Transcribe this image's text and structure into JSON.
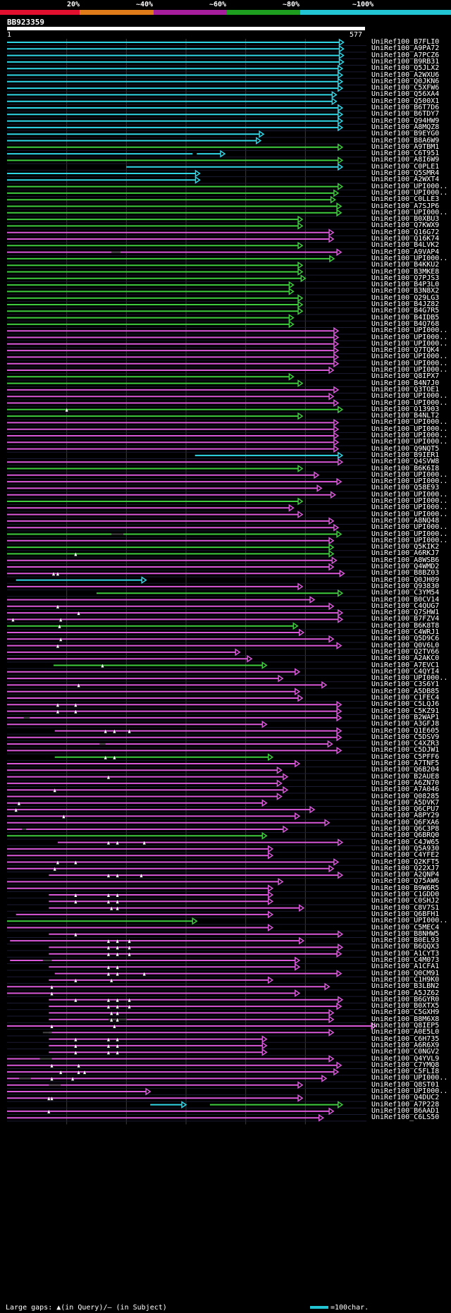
{
  "scale": {
    "labels": [
      "20%",
      "~40%",
      "~60%",
      "~80%",
      "~100%"
    ],
    "colors": [
      "#e0102e",
      "#e07b1a",
      "#a61e9c",
      "#1e9e1e",
      "#22c5d4"
    ]
  },
  "query": {
    "name": "BB923359",
    "start": "1",
    "end": "577"
  },
  "legend": {
    "left": "Large gaps: ▲(in Query)/— (in Subject)",
    "right": "=100char."
  },
  "hits": [
    {
      "name": "UniRef100_B7FLI0",
      "s": 0,
      "e": 564,
      "c": "c"
    },
    {
      "name": "UniRef100_A9PA72",
      "s": 0,
      "e": 564,
      "c": "c"
    },
    {
      "name": "UniRef100_A7PCZ6",
      "s": 0,
      "e": 564,
      "c": "c"
    },
    {
      "name": "UniRef100_B9RB31",
      "s": 0,
      "e": 564,
      "c": "c"
    },
    {
      "name": "UniRef100_Q5JLX2",
      "s": 0,
      "e": 562,
      "c": "c"
    },
    {
      "name": "UniRef100_A2WXU6",
      "s": 0,
      "e": 562,
      "c": "c"
    },
    {
      "name": "UniRef100_Q0JKN6",
      "s": 0,
      "e": 562,
      "c": "c"
    },
    {
      "name": "UniRef100_C5XFW6",
      "s": 0,
      "e": 562,
      "c": "c"
    },
    {
      "name": "UniRef100_Q56XA4",
      "s": 0,
      "e": 552,
      "c": "c"
    },
    {
      "name": "UniRef100_Q500X1",
      "s": 0,
      "e": 552,
      "c": "c"
    },
    {
      "name": "UniRef100_B6T7D6",
      "s": 0,
      "e": 562,
      "c": "c"
    },
    {
      "name": "UniRef100_B6TDY7",
      "s": 0,
      "e": 562,
      "c": "c"
    },
    {
      "name": "UniRef100_Q94HW9",
      "s": 0,
      "e": 562,
      "c": "c"
    },
    {
      "name": "UniRef100_A8MQZ8",
      "s": 0,
      "e": 562,
      "c": "c"
    },
    {
      "name": "UniRef100_B9EYG0",
      "s": 0,
      "e": 430,
      "c": "c"
    },
    {
      "name": "UniRef100_B8A6W9",
      "s": 0,
      "e": 425,
      "c": "c"
    },
    {
      "name": "UniRef100_A9TBM1",
      "s": 0,
      "e": 562,
      "c": "g"
    },
    {
      "name": "UniRef100_C6T951",
      "s": 0,
      "e": 365,
      "c": "c",
      "seg": [
        318,
        365
      ]
    },
    {
      "name": "UniRef100_A8I6W9",
      "s": 0,
      "e": 562,
      "c": "g"
    },
    {
      "name": "UniRef100_C0PLE1",
      "s": 200,
      "e": 562,
      "c": "c"
    },
    {
      "name": "UniRef100_Q5SMR4",
      "s": 0,
      "e": 323,
      "c": "c"
    },
    {
      "name": "UniRef100_A2WXT4",
      "s": 0,
      "e": 323,
      "c": "c"
    },
    {
      "name": "UniRef100_UPI000..",
      "s": 0,
      "e": 562,
      "c": "g"
    },
    {
      "name": "UniRef100_UPI000..",
      "s": 0,
      "e": 555,
      "c": "g"
    },
    {
      "name": "UniRef100_C0LLE3",
      "s": 0,
      "e": 550,
      "c": "g"
    },
    {
      "name": "UniRef100_A7SJP6",
      "s": 0,
      "e": 560,
      "c": "g"
    },
    {
      "name": "UniRef100_UPI000..",
      "s": 0,
      "e": 560,
      "c": "g"
    },
    {
      "name": "UniRef100_B0XBU3",
      "s": 0,
      "e": 495,
      "c": "g"
    },
    {
      "name": "UniRef100_Q7KWX9",
      "s": 0,
      "e": 495,
      "c": "g"
    },
    {
      "name": "UniRef100_Q16G72",
      "s": 0,
      "e": 547,
      "c": "m"
    },
    {
      "name": "UniRef100_Q16K74",
      "s": 0,
      "e": 547,
      "c": "m"
    },
    {
      "name": "UniRef100_B4LVK2",
      "s": 0,
      "e": 495,
      "c": "g"
    },
    {
      "name": "UniRef100_A9VAP4",
      "s": 0,
      "e": 560,
      "c": "m",
      "gap": [
        175,
        190
      ]
    },
    {
      "name": "UniRef100_UPI000..",
      "s": 0,
      "e": 548,
      "c": "g"
    },
    {
      "name": "UniRef100_B4KKU2",
      "s": 0,
      "e": 495,
      "c": "g"
    },
    {
      "name": "UniRef100_B3MKE8",
      "s": 0,
      "e": 495,
      "c": "g"
    },
    {
      "name": "UniRef100_Q7PJS3",
      "s": 0,
      "e": 500,
      "c": "g"
    },
    {
      "name": "UniRef100_B4P3L0",
      "s": 0,
      "e": 480,
      "c": "g"
    },
    {
      "name": "UniRef100_B3N8X2",
      "s": 0,
      "e": 480,
      "c": "g"
    },
    {
      "name": "UniRef100_Q29LG3",
      "s": 0,
      "e": 495,
      "c": "g"
    },
    {
      "name": "UniRef100_B4JZ82",
      "s": 0,
      "e": 495,
      "c": "g"
    },
    {
      "name": "UniRef100_B4G7R5",
      "s": 0,
      "e": 495,
      "c": "g"
    },
    {
      "name": "UniRef100_B4IDB5",
      "s": 0,
      "e": 480,
      "c": "g"
    },
    {
      "name": "UniRef100_B4Q768",
      "s": 0,
      "e": 480,
      "c": "g"
    },
    {
      "name": "UniRef100_UPI000..",
      "s": 0,
      "e": 555,
      "c": "m"
    },
    {
      "name": "UniRef100_UPI000..",
      "s": 0,
      "e": 555,
      "c": "m"
    },
    {
      "name": "UniRef100_UPI000..",
      "s": 0,
      "e": 555,
      "c": "m"
    },
    {
      "name": "UniRef100_Q7TQK4",
      "s": 0,
      "e": 555,
      "c": "m"
    },
    {
      "name": "UniRef100_UPI000..",
      "s": 0,
      "e": 555,
      "c": "m"
    },
    {
      "name": "UniRef100_UPI000..",
      "s": 0,
      "e": 555,
      "c": "m"
    },
    {
      "name": "UniRef100_UPI000..",
      "s": 0,
      "e": 547,
      "c": "m"
    },
    {
      "name": "UniRef100_Q8IPX7",
      "s": 0,
      "e": 480,
      "c": "g"
    },
    {
      "name": "UniRef100_B4N7J0",
      "s": 0,
      "e": 495,
      "c": "g"
    },
    {
      "name": "UniRef100_Q3TOE1",
      "s": 0,
      "e": 555,
      "c": "m"
    },
    {
      "name": "UniRef100_UPI000..",
      "s": 0,
      "e": 547,
      "c": "m"
    },
    {
      "name": "UniRef100_UPI000..",
      "s": 0,
      "e": 555,
      "c": "m"
    },
    {
      "name": "UniRef100_O13903",
      "s": 0,
      "e": 562,
      "c": "g",
      "tri": [
        100
      ]
    },
    {
      "name": "UniRef100_B4NLT2",
      "s": 0,
      "e": 495,
      "c": "g"
    },
    {
      "name": "UniRef100_UPI000..",
      "s": 0,
      "e": 555,
      "c": "m"
    },
    {
      "name": "UniRef100_UPI000..",
      "s": 0,
      "e": 555,
      "c": "m"
    },
    {
      "name": "UniRef100_UPI000..",
      "s": 0,
      "e": 555,
      "c": "m"
    },
    {
      "name": "UniRef100_UPI000..",
      "s": 0,
      "e": 555,
      "c": "m"
    },
    {
      "name": "UniRef100_Q9NQT5",
      "s": 0,
      "e": 555,
      "c": "m"
    },
    {
      "name": "UniRef100_B9IER1",
      "s": 315,
      "e": 562,
      "c": "c"
    },
    {
      "name": "UniRef100_Q4SVW8",
      "s": 0,
      "e": 562,
      "c": "m"
    },
    {
      "name": "UniRef100_B6K6I8",
      "s": 0,
      "e": 495,
      "c": "g"
    },
    {
      "name": "UniRef100_UPI000..",
      "s": 0,
      "e": 522,
      "c": "m"
    },
    {
      "name": "UniRef100_UPI000..",
      "s": 0,
      "e": 560,
      "c": "m"
    },
    {
      "name": "UniRef100_Q58E93",
      "s": 0,
      "e": 527,
      "c": "m"
    },
    {
      "name": "UniRef100_UPI000..",
      "s": 0,
      "e": 550,
      "c": "m"
    },
    {
      "name": "UniRef100_UPI000..",
      "s": 0,
      "e": 495,
      "c": "g"
    },
    {
      "name": "UniRef100_UPI000..",
      "s": 0,
      "e": 480,
      "c": "m"
    },
    {
      "name": "UniRef100_UPI000..",
      "s": 0,
      "e": 495,
      "c": "m"
    },
    {
      "name": "UniRef100_A8NQ48",
      "s": 0,
      "e": 547,
      "c": "m"
    },
    {
      "name": "UniRef100_UPI000..",
      "s": 0,
      "e": 555,
      "c": "m"
    },
    {
      "name": "UniRef100_UPI000..",
      "s": 0,
      "e": 560,
      "c": "g",
      "gap": [
        175,
        195
      ]
    },
    {
      "name": "UniRef100_UPI000..",
      "s": 0,
      "e": 547,
      "c": "m"
    },
    {
      "name": "UniRef100_Q5KIK2",
      "s": 0,
      "e": 547,
      "c": "g"
    },
    {
      "name": "UniRef100_A6RKJ7",
      "s": 0,
      "e": 547,
      "c": "g",
      "tri": [
        115
      ]
    },
    {
      "name": "UniRef100_A8WSB6",
      "s": 0,
      "e": 552,
      "c": "m"
    },
    {
      "name": "UniRef100_Q4WMD2",
      "s": 0,
      "e": 547,
      "c": "m"
    },
    {
      "name": "UniRef100_B8BZ03",
      "s": 0,
      "e": 565,
      "c": "m",
      "tri": [
        78,
        85
      ]
    },
    {
      "name": "UniRef100_Q0JH09",
      "s": 15,
      "e": 233,
      "c": "c"
    },
    {
      "name": "UniRef100_Q93830",
      "s": 0,
      "e": 495,
      "c": "m"
    },
    {
      "name": "UniRef100_C3YM54",
      "s": 150,
      "e": 562,
      "c": "g"
    },
    {
      "name": "UniRef100_B0CV14",
      "s": 0,
      "e": 515,
      "c": "m"
    },
    {
      "name": "UniRef100_C4QUG7",
      "s": 0,
      "e": 547,
      "c": "m",
      "tri": [
        85
      ]
    },
    {
      "name": "UniRef100_Q7SHW1",
      "s": 0,
      "e": 562,
      "c": "m",
      "tri": [
        120
      ]
    },
    {
      "name": "UniRef100_B7FZV4",
      "s": 0,
      "e": 562,
      "c": "m",
      "tri": [
        10,
        90
      ]
    },
    {
      "name": "UniRef100_B6K8T8",
      "s": 0,
      "e": 487,
      "c": "g",
      "tri": [
        88
      ]
    },
    {
      "name": "UniRef100_C4WRJ1",
      "s": 0,
      "e": 497,
      "c": "m"
    },
    {
      "name": "UniRef100_Q5D9C6",
      "s": 0,
      "e": 547,
      "c": "m",
      "tri": [
        90
      ]
    },
    {
      "name": "UniRef100_Q0V6L0",
      "s": 0,
      "e": 560,
      "c": "m",
      "tri": [
        85
      ]
    },
    {
      "name": "UniRef100_Q2TV66",
      "s": 0,
      "e": 390,
      "c": "m"
    },
    {
      "name": "UniRef100_A2AKC0",
      "s": 0,
      "e": 410,
      "c": "m"
    },
    {
      "name": "UniRef100_A7EVC1",
      "s": 78,
      "e": 435,
      "c": "g",
      "tri": [
        160
      ]
    },
    {
      "name": "UniRef100_C4QYI4",
      "s": 0,
      "e": 490,
      "c": "m"
    },
    {
      "name": "UniRef100_UPI000..",
      "s": 0,
      "e": 462,
      "c": "m"
    },
    {
      "name": "UniRef100_C3S6Y1",
      "s": 0,
      "e": 535,
      "c": "m",
      "tri": [
        120
      ]
    },
    {
      "name": "UniRef100_A5DB85",
      "s": 0,
      "e": 490,
      "c": "m"
    },
    {
      "name": "UniRef100_C1FEC4",
      "s": 0,
      "e": 495,
      "c": "m"
    },
    {
      "name": "UniRef100_C5LQJ6",
      "s": 0,
      "e": 560,
      "c": "m",
      "tri": [
        85,
        115
      ]
    },
    {
      "name": "UniRef100_C5KZ91",
      "s": 0,
      "e": 560,
      "c": "m",
      "tri": [
        85,
        115
      ]
    },
    {
      "name": "UniRef100_B2WAP1",
      "s": 0,
      "e": 560,
      "c": "m",
      "gap": [
        28,
        38
      ]
    },
    {
      "name": "UniRef100_A3GFJ8",
      "s": 0,
      "e": 435,
      "c": "m"
    },
    {
      "name": "UniRef100_Q1E605",
      "s": 80,
      "e": 560,
      "c": "m",
      "tri": [
        165,
        180,
        205
      ]
    },
    {
      "name": "UniRef100_C5DSV9",
      "s": 0,
      "e": 560,
      "c": "m"
    },
    {
      "name": "UniRef100_C4XZR3",
      "s": 0,
      "e": 545,
      "c": "m",
      "gap": [
        155,
        165
      ]
    },
    {
      "name": "UniRef100_C5DJW1",
      "s": 0,
      "e": 560,
      "c": "m"
    },
    {
      "name": "UniRef100_C5PFF6",
      "s": 80,
      "e": 445,
      "c": "g",
      "tri": [
        165,
        180
      ]
    },
    {
      "name": "UniRef100_A7TNF5",
      "s": 0,
      "e": 490,
      "c": "m"
    },
    {
      "name": "UniRef100_Q6B204",
      "s": 0,
      "e": 460,
      "c": "m"
    },
    {
      "name": "UniRef100_B2AUE8",
      "s": 0,
      "e": 470,
      "c": "m",
      "tri": [
        170
      ]
    },
    {
      "name": "UniRef100_A6ZN70",
      "s": 0,
      "e": 460,
      "c": "m"
    },
    {
      "name": "UniRef100_A7A046",
      "s": 0,
      "e": 470,
      "c": "m",
      "tri": [
        80
      ]
    },
    {
      "name": "UniRef100_Q08285",
      "s": 0,
      "e": 460,
      "c": "m"
    },
    {
      "name": "UniRef100_A5DVK7",
      "s": 0,
      "e": 435,
      "c": "m",
      "tri": [
        20
      ]
    },
    {
      "name": "UniRef100_Q6CPU7",
      "s": 0,
      "e": 515,
      "c": "m",
      "tri": [
        15
      ]
    },
    {
      "name": "UniRef100_A8PY29",
      "s": 0,
      "e": 490,
      "c": "m",
      "tri": [
        95
      ]
    },
    {
      "name": "UniRef100_Q6FXA6",
      "s": 0,
      "e": 540,
      "c": "m"
    },
    {
      "name": "UniRef100_Q6C3P8",
      "s": 0,
      "e": 470,
      "c": "m",
      "gap": [
        25,
        32
      ]
    },
    {
      "name": "UniRef100_Q6BRQ0",
      "s": 0,
      "e": 435,
      "c": "g"
    },
    {
      "name": "UniRef100_C4JW65",
      "s": 85,
      "e": 562,
      "c": "m",
      "tri": [
        170,
        185,
        230
      ]
    },
    {
      "name": "UniRef100_Q5A930",
      "s": 0,
      "e": 445,
      "c": "m"
    },
    {
      "name": "UniRef100_C4YFE2",
      "s": 0,
      "e": 445,
      "c": "m"
    },
    {
      "name": "UniRef100_Q2KFT5",
      "s": 0,
      "e": 555,
      "c": "m",
      "tri": [
        85,
        115
      ]
    },
    {
      "name": "UniRef100_Q22XJ7",
      "s": 0,
      "e": 547,
      "c": "m",
      "tri": [
        80
      ]
    },
    {
      "name": "UniRef100_A2QNP4",
      "s": 70,
      "e": 562,
      "c": "m",
      "tri": [
        170,
        185,
        225
      ]
    },
    {
      "name": "UniRef100_Q75AW6",
      "s": 0,
      "e": 462,
      "c": "m"
    },
    {
      "name": "UniRef100_B9W6R5",
      "s": 0,
      "e": 445,
      "c": "m"
    },
    {
      "name": "UniRef100_C1GDD0",
      "s": 70,
      "e": 445,
      "c": "m",
      "tri": [
        115,
        170,
        185
      ]
    },
    {
      "name": "UniRef100_C0SHJ2",
      "s": 70,
      "e": 445,
      "c": "m",
      "tri": [
        115,
        170,
        185
      ]
    },
    {
      "name": "UniRef100_C8V7S1",
      "s": 70,
      "e": 497,
      "c": "m",
      "tri": [
        175,
        185
      ]
    },
    {
      "name": "UniRef100_Q6BFH1",
      "s": 15,
      "e": 445,
      "c": "m"
    },
    {
      "name": "UniRef100_UPI000..",
      "s": 0,
      "e": 318,
      "c": "g"
    },
    {
      "name": "UniRef100_C5MEC4",
      "s": 0,
      "e": 445,
      "c": "m"
    },
    {
      "name": "UniRef100_B8NHW5",
      "s": 70,
      "e": 562,
      "c": "m",
      "tri": [
        115
      ]
    },
    {
      "name": "UniRef100_B0EL93",
      "s": 5,
      "e": 497,
      "c": "m",
      "tri": [
        170,
        185,
        205
      ]
    },
    {
      "name": "UniRef100_B6QQX3",
      "s": 70,
      "e": 562,
      "c": "m",
      "tri": [
        170,
        185,
        205
      ]
    },
    {
      "name": "UniRef100_A1CYT3",
      "s": 70,
      "e": 560,
      "c": "m",
      "tri": [
        170,
        185,
        205
      ]
    },
    {
      "name": "UniRef100_C4M073",
      "s": 5,
      "e": 490,
      "c": "m",
      "gap": [
        60,
        75
      ]
    },
    {
      "name": "UniRef100_A1CFA1",
      "s": 70,
      "e": 490,
      "c": "m",
      "tri": [
        170,
        185
      ]
    },
    {
      "name": "UniRef100_Q0CM91",
      "s": 80,
      "e": 560,
      "c": "m",
      "tri": [
        170,
        185,
        230
      ]
    },
    {
      "name": "UniRef100_C1H9K0",
      "s": 70,
      "e": 445,
      "c": "m",
      "tri": [
        115,
        175
      ]
    },
    {
      "name": "UniRef100_B3LBN2",
      "s": 0,
      "e": 540,
      "c": "m",
      "tri": [
        75
      ]
    },
    {
      "name": "UniRef100_A5JZ62",
      "s": 0,
      "e": 490,
      "c": "m",
      "tri": [
        75
      ]
    },
    {
      "name": "UniRef100_B6GYR0",
      "s": 70,
      "e": 562,
      "c": "m",
      "tri": [
        115,
        170,
        185,
        205
      ]
    },
    {
      "name": "UniRef100_B0XTX5",
      "s": 70,
      "e": 560,
      "c": "m",
      "tri": [
        170,
        185,
        205
      ]
    },
    {
      "name": "UniRef100_C5GXH9",
      "s": 70,
      "e": 547,
      "c": "m",
      "tri": [
        175,
        185
      ]
    },
    {
      "name": "UniRef100_B8M6X8",
      "s": 70,
      "e": 547,
      "c": "m",
      "tri": [
        175,
        185
      ],
      "gap": [
        170,
        200
      ]
    },
    {
      "name": "UniRef100_Q8IEP5",
      "s": 0,
      "e": 618,
      "c": "m",
      "tri": [
        75,
        180
      ]
    },
    {
      "name": "UniRef100_A0E5L0",
      "s": 70,
      "e": 547,
      "c": "m",
      "gap": [
        60,
        75
      ]
    },
    {
      "name": "UniRef100_C6H735",
      "s": 70,
      "e": 435,
      "c": "m",
      "tri": [
        115,
        170,
        185
      ]
    },
    {
      "name": "UniRef100_A6R6X9",
      "s": 70,
      "e": 435,
      "c": "m",
      "tri": [
        115,
        170,
        185
      ]
    },
    {
      "name": "UniRef100_C0NGV2",
      "s": 70,
      "e": 435,
      "c": "m",
      "tri": [
        115,
        170,
        185
      ]
    },
    {
      "name": "UniRef100_Q4YVL9",
      "s": 0,
      "e": 547,
      "c": "m",
      "gap": [
        55,
        75
      ]
    },
    {
      "name": "UniRef100_C7YMQ8",
      "s": 0,
      "e": 560,
      "c": "m",
      "tri": [
        75,
        120
      ]
    },
    {
      "name": "UniRef100_C5FLI8",
      "s": 0,
      "e": 555,
      "c": "m",
      "tri": [
        90,
        120,
        130
      ]
    },
    {
      "name": "UniRef100_UPI000..",
      "s": 0,
      "e": 535,
      "c": "m",
      "tri": [
        75,
        110
      ],
      "gap": [
        20,
        40
      ]
    },
    {
      "name": "UniRef100_Q8ST01",
      "s": 0,
      "e": 495,
      "c": "m",
      "gap": [
        70,
        90
      ]
    },
    {
      "name": "UniRef100_UPI000..",
      "s": 0,
      "e": 240,
      "c": "m"
    },
    {
      "name": "UniRef100_Q4DUC2",
      "s": 0,
      "e": 495,
      "c": "m",
      "tri": [
        70,
        75
      ]
    },
    {
      "name": "UniRef100_A7P228",
      "s": 240,
      "e": 562,
      "c": "c2",
      "seg": [
        240,
        300,
        340,
        562
      ]
    },
    {
      "name": "UniRef100_B6AAD1",
      "s": 0,
      "e": 547,
      "c": "m",
      "tri": [
        70
      ]
    },
    {
      "name": "UniRef100_C6LS50",
      "s": 0,
      "e": 530,
      "c": "m"
    }
  ]
}
